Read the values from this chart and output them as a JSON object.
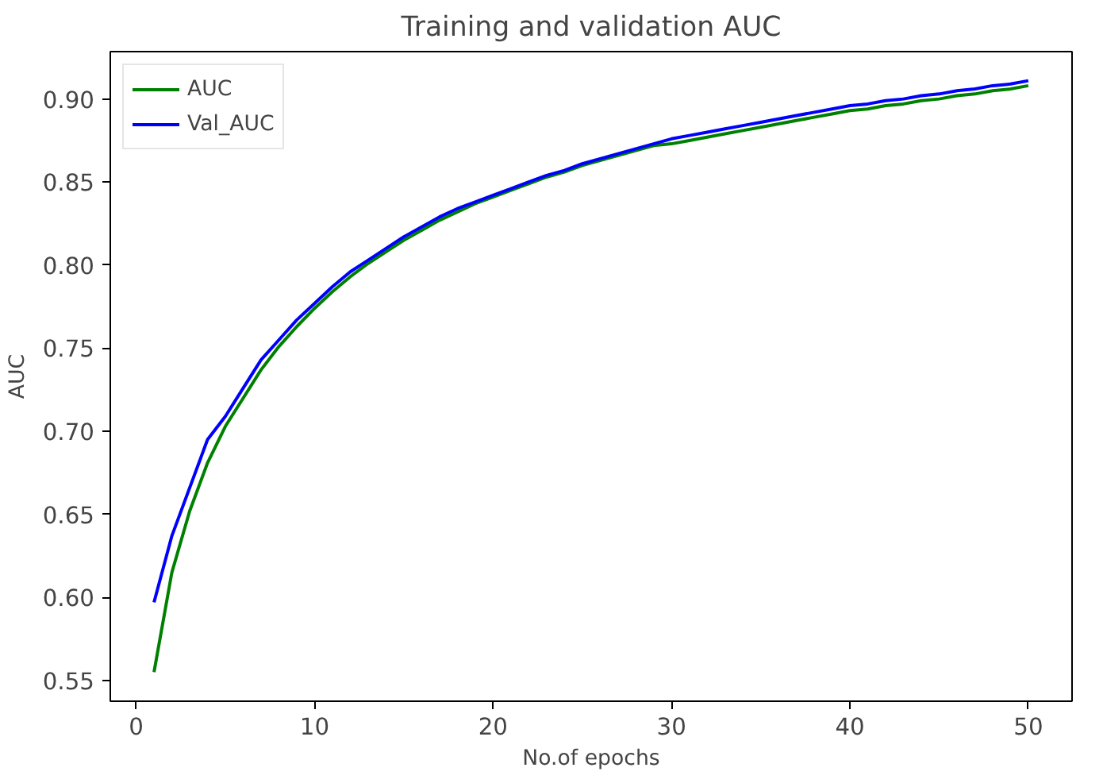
{
  "chart_data": {
    "type": "line",
    "title": "Training and validation AUC",
    "xlabel": "No.of epochs",
    "ylabel": "AUC",
    "x": [
      1,
      2,
      3,
      4,
      5,
      6,
      7,
      8,
      9,
      10,
      11,
      12,
      13,
      14,
      15,
      16,
      17,
      18,
      19,
      20,
      21,
      22,
      23,
      24,
      25,
      26,
      27,
      28,
      29,
      30,
      31,
      32,
      33,
      34,
      35,
      36,
      37,
      38,
      39,
      40,
      41,
      42,
      43,
      44,
      45,
      46,
      47,
      48,
      49,
      50
    ],
    "series": [
      {
        "name": "AUC",
        "color": "#008000",
        "values": [
          0.555,
          0.615,
          0.652,
          0.681,
          0.703,
          0.72,
          0.737,
          0.751,
          0.763,
          0.774,
          0.784,
          0.793,
          0.801,
          0.808,
          0.815,
          0.821,
          0.827,
          0.832,
          0.837,
          0.841,
          0.845,
          0.849,
          0.853,
          0.856,
          0.86,
          0.863,
          0.866,
          0.869,
          0.872,
          0.873,
          0.875,
          0.877,
          0.879,
          0.881,
          0.883,
          0.885,
          0.887,
          0.889,
          0.891,
          0.893,
          0.894,
          0.896,
          0.897,
          0.899,
          0.9,
          0.902,
          0.903,
          0.905,
          0.906,
          0.908
        ]
      },
      {
        "name": "Val_AUC",
        "color": "#0000ff",
        "values": [
          0.597,
          0.637,
          0.666,
          0.695,
          0.709,
          0.726,
          0.743,
          0.755,
          0.767,
          0.777,
          0.787,
          0.796,
          0.803,
          0.81,
          0.817,
          0.823,
          0.829,
          0.834,
          0.838,
          0.842,
          0.846,
          0.85,
          0.854,
          0.857,
          0.861,
          0.864,
          0.867,
          0.87,
          0.873,
          0.876,
          0.878,
          0.88,
          0.882,
          0.884,
          0.886,
          0.888,
          0.89,
          0.892,
          0.894,
          0.896,
          0.897,
          0.899,
          0.9,
          0.902,
          0.903,
          0.905,
          0.906,
          0.908,
          0.909,
          0.911
        ]
      }
    ],
    "xlim": [
      -1.45,
      52.45
    ],
    "ylim": [
      0.5375,
      0.9285
    ],
    "xticks": [
      0,
      10,
      20,
      30,
      40,
      50
    ],
    "yticks": [
      0.55,
      {
        "value": 0.6,
        "label": "0.60"
      },
      0.65,
      {
        "value": 0.7,
        "label": "0.70"
      },
      0.75,
      {
        "value": 0.8,
        "label": "0.80"
      },
      0.85,
      {
        "value": 0.9,
        "label": "0.90"
      }
    ],
    "grid": false,
    "legend": "top left",
    "line_style": "solid",
    "marker": "none"
  }
}
